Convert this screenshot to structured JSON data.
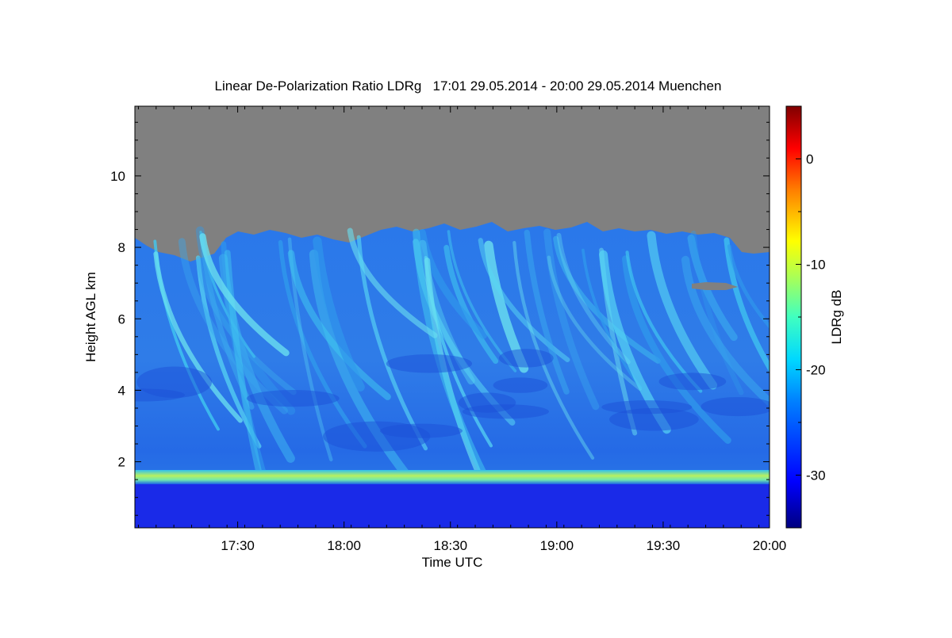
{
  "chart_data": {
    "type": "heatmap",
    "title": "Linear De-Polarization Ratio LDRg   17:01 29.05.2014 - 20:00 29.05.2014 Muenchen",
    "xlabel": "Time UTC",
    "ylabel": "Height AGL km",
    "x_ticks": [
      {
        "value": 17.5,
        "label": "17:30"
      },
      {
        "value": 18.0,
        "label": "18:00"
      },
      {
        "value": 18.5,
        "label": "18:30"
      },
      {
        "value": 19.0,
        "label": "19:00"
      },
      {
        "value": 19.5,
        "label": "19:30"
      },
      {
        "value": 20.0,
        "label": "20:00"
      }
    ],
    "y_ticks": [
      {
        "value": 2,
        "label": "2"
      },
      {
        "value": 4,
        "label": "4"
      },
      {
        "value": 6,
        "label": "6"
      },
      {
        "value": 8,
        "label": "8"
      },
      {
        "value": 10,
        "label": "10"
      }
    ],
    "xlim": [
      17.0167,
      20.0
    ],
    "ylim": [
      0.15,
      11.95
    ],
    "colorbar": {
      "label": "LDRg dB",
      "range": [
        -35,
        5
      ],
      "ticks": [
        {
          "value": 0,
          "label": "0"
        },
        {
          "value": -10,
          "label": "-10"
        },
        {
          "value": -20,
          "label": "-20"
        },
        {
          "value": -30,
          "label": "-30"
        }
      ],
      "colormap": [
        "#000080",
        "#0000ff",
        "#00c8ff",
        "#40e0d0",
        "#7fff7f",
        "#ffff00",
        "#ff8000",
        "#ff0000",
        "#800000"
      ]
    },
    "colors": {
      "no_signal": "#808080",
      "low_layer": "#1020e8",
      "background_blue": "#2a6ee8",
      "cirrus_cyan": "#48d8f0",
      "boundary_layer": "#a8f060"
    },
    "features": {
      "boundary_layer_top_km": 1.6,
      "cirrus_top_km": 8.3,
      "low_ldr_layer_top_km": 1.4,
      "low_ldr_value_db": -33,
      "cirrus_ldr_value_db": -20,
      "boundary_layer_ldr_db": -12
    }
  }
}
